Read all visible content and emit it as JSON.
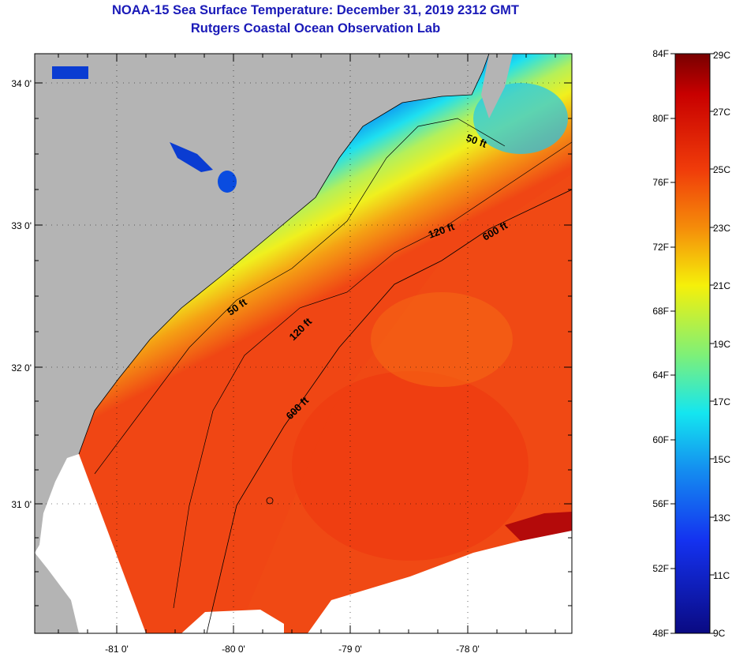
{
  "header": {
    "title": "NOAA-15 Sea Surface Temperature:  December 31, 2019 2312 GMT",
    "subtitle": "Rutgers Coastal Ocean Observation Lab"
  },
  "map": {
    "lat_labels": [
      "34 0'",
      "33 0'",
      "32 0'",
      "31 0'"
    ],
    "lon_labels": [
      "-81 0'",
      "-80 0'",
      "-79 0'",
      "-78 0'"
    ],
    "isobath_labels": [
      "50 ft",
      "120 ft",
      "600 ft",
      "50 ft",
      "120 ft",
      "600 ft"
    ]
  },
  "colorbar": {
    "fahrenheit_labels": [
      "84F",
      "80F",
      "76F",
      "72F",
      "68F",
      "64F",
      "60F",
      "56F",
      "52F",
      "48F"
    ],
    "celsius_labels": [
      "29C",
      "27C",
      "25C",
      "23C",
      "21C",
      "19C",
      "17C",
      "15C",
      "13C",
      "11C",
      "9C"
    ]
  },
  "colors": {
    "land": "#b4b4b4",
    "title": "#1a1ab8",
    "cloud": "#ffffff"
  }
}
